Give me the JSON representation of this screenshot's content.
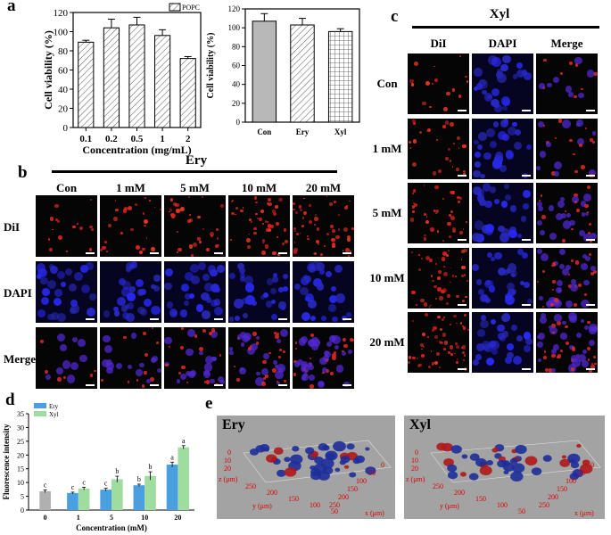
{
  "panel_labels": {
    "a": "a",
    "b": "b",
    "c": "c",
    "d": "d",
    "e": "e"
  },
  "chart_data": [
    {
      "id": "a1",
      "type": "bar",
      "categories": [
        "0.1",
        "0.2",
        "0.5",
        "1",
        "2"
      ],
      "values": [
        89,
        104,
        107,
        96,
        72
      ],
      "errors": [
        2,
        9,
        8,
        6,
        2
      ],
      "legend": [
        "POPC"
      ],
      "xlabel": "Concentration (mg/mL)",
      "ylabel": "Cell viability (%)",
      "ylim": [
        0,
        120
      ],
      "yticks": [
        0,
        20,
        40,
        60,
        80,
        100,
        120
      ],
      "pattern": "diagonal-hatch"
    },
    {
      "id": "a2",
      "type": "bar",
      "categories": [
        "Con",
        "Ery",
        "Xyl"
      ],
      "values": [
        107,
        103,
        96
      ],
      "errors": [
        8,
        7,
        3
      ],
      "xlabel": "",
      "ylabel": "Cell viability (%)",
      "ylim": [
        0,
        120
      ],
      "yticks": [
        0,
        20,
        40,
        60,
        80,
        100,
        120
      ],
      "patterns": [
        "solid-gray",
        "diagonal-hatch",
        "grid"
      ]
    },
    {
      "id": "d",
      "type": "bar",
      "categories": [
        "0",
        "1",
        "5",
        "10",
        "20"
      ],
      "series": [
        {
          "name": "Ery",
          "values": [
            6.8,
            6.2,
            7.4,
            9.0,
            16.5
          ],
          "errors": [
            0.5,
            0.3,
            0.5,
            0.4,
            0.9
          ],
          "letters": [
            "c",
            "c",
            "c",
            "b",
            "a"
          ]
        },
        {
          "name": "Xyl",
          "values": [
            null,
            7.8,
            11.2,
            12.4,
            22.8
          ],
          "errors": [
            null,
            0.5,
            1.1,
            1.5,
            0.6
          ],
          "letters": [
            "",
            "c",
            "b",
            "b",
            "a"
          ]
        }
      ],
      "control_color": "#b0b0b0",
      "xlabel": "Concentration (mM)",
      "ylabel": "Fluorescence intensity",
      "ylim": [
        0,
        35
      ],
      "yticks": [
        0,
        5,
        10,
        15,
        20,
        25,
        30,
        35
      ]
    }
  ],
  "panel_b": {
    "title": "Ery",
    "columns": [
      "Con",
      "1 mM",
      "5 mM",
      "10 mM",
      "20 mM"
    ],
    "rows": [
      "DiI",
      "DAPI",
      "Merge"
    ]
  },
  "panel_c": {
    "title": "Xyl",
    "columns": [
      "DiI",
      "DAPI",
      "Merge"
    ],
    "rows": [
      "Con",
      "1 mM",
      "5 mM",
      "10 mM",
      "20 mM"
    ]
  },
  "panel_e": {
    "ery": {
      "title": "Ery",
      "z_label": "z (μm)",
      "y_label": "y (μm)",
      "x_label": "x (μm)",
      "z_ticks": [
        "0",
        "10",
        "20"
      ],
      "y_ticks": [
        "250",
        "200",
        "150",
        "100",
        "50"
      ],
      "x_ticks": [
        "0",
        "50",
        "100",
        "150",
        "200",
        "250"
      ]
    },
    "xyl": {
      "title": "Xyl",
      "z_label": "z (μm)",
      "y_label": "y (μm)",
      "x_label": "x (μm)",
      "z_ticks": [
        "0",
        "10",
        "20"
      ],
      "y_ticks": [
        "250",
        "200",
        "150",
        "100",
        "50"
      ],
      "x_ticks": [
        "0",
        "50",
        "100",
        "150",
        "200",
        "250"
      ]
    }
  },
  "colors": {
    "ery": "#4a9fe0",
    "xyl": "#9fdc9f",
    "dil": "#e02020",
    "dapi": "#2828d8"
  }
}
